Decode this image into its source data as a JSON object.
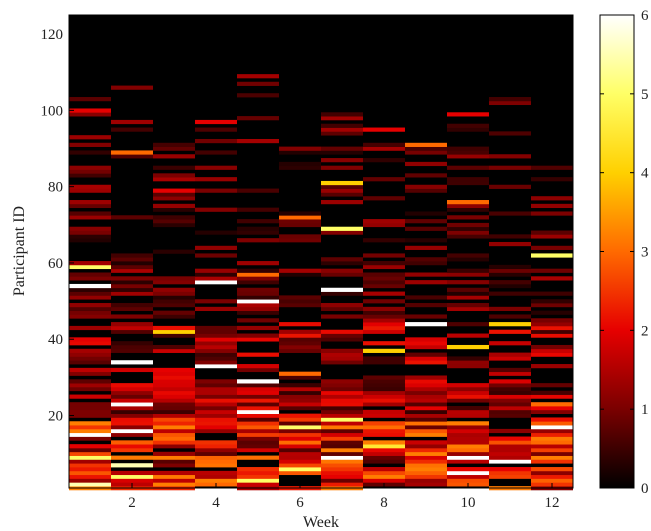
{
  "chart_data": {
    "type": "heatmap",
    "xlabel": "Week",
    "ylabel": "Participant ID",
    "x_range": [
      0.5,
      12.5
    ],
    "y_range": [
      1,
      125
    ],
    "x_ticks": [
      2,
      4,
      6,
      8,
      10,
      12
    ],
    "y_ticks": [
      20,
      40,
      60,
      80,
      100,
      120
    ],
    "colorbar": {
      "min": 0,
      "max": 6,
      "ticks": [
        0,
        1,
        2,
        3,
        4,
        5,
        6
      ],
      "colormap": "hot",
      "stops": [
        "#000000",
        "#7a0000",
        "#e60000",
        "#ff6a00",
        "#ffd000",
        "#ffff66",
        "#ffffff"
      ]
    },
    "weeks": [
      1,
      2,
      3,
      4,
      5,
      6,
      7,
      8,
      9,
      10,
      11,
      12
    ],
    "last_participant_by_week": [
      105,
      108,
      95,
      98,
      109,
      92,
      101,
      96,
      93,
      99,
      103,
      86
    ],
    "cells": [
      [
        1,
        2,
        5.5
      ],
      [
        2,
        4,
        5
      ],
      [
        1,
        9,
        5
      ],
      [
        2,
        7,
        5.5
      ],
      [
        5,
        3,
        5
      ],
      [
        6,
        6,
        5
      ],
      [
        7,
        9,
        6
      ],
      [
        8,
        12,
        4.5
      ],
      [
        10,
        9,
        6
      ],
      [
        10,
        5,
        6
      ],
      [
        11,
        8,
        6
      ],
      [
        12,
        17,
        6
      ],
      [
        1,
        15,
        6
      ],
      [
        2,
        16,
        6
      ],
      [
        5,
        21,
        6
      ],
      [
        2,
        23,
        6
      ],
      [
        6,
        17,
        5
      ],
      [
        7,
        19,
        5
      ],
      [
        3,
        42,
        4
      ],
      [
        2,
        34,
        6
      ],
      [
        4,
        33,
        6
      ],
      [
        5,
        29,
        6
      ],
      [
        8,
        37,
        4
      ],
      [
        10,
        38,
        4
      ],
      [
        11,
        44,
        4
      ],
      [
        9,
        44,
        6
      ],
      [
        7,
        53,
        6
      ],
      [
        5,
        50,
        6
      ],
      [
        4,
        55,
        6
      ],
      [
        1,
        54,
        6
      ],
      [
        1,
        59,
        5
      ],
      [
        12,
        62,
        5
      ],
      [
        7,
        69,
        5
      ],
      [
        6,
        72,
        3
      ],
      [
        10,
        76,
        3
      ],
      [
        7,
        81,
        4
      ],
      [
        9,
        91,
        3
      ],
      [
        2,
        89,
        3
      ],
      [
        4,
        97,
        2
      ],
      [
        10,
        99,
        2
      ],
      [
        1,
        100,
        2
      ],
      [
        8,
        95,
        2
      ],
      [
        5,
        57,
        3
      ],
      [
        3,
        79,
        2
      ],
      [
        12,
        23,
        3
      ],
      [
        6,
        31,
        3
      ]
    ]
  }
}
